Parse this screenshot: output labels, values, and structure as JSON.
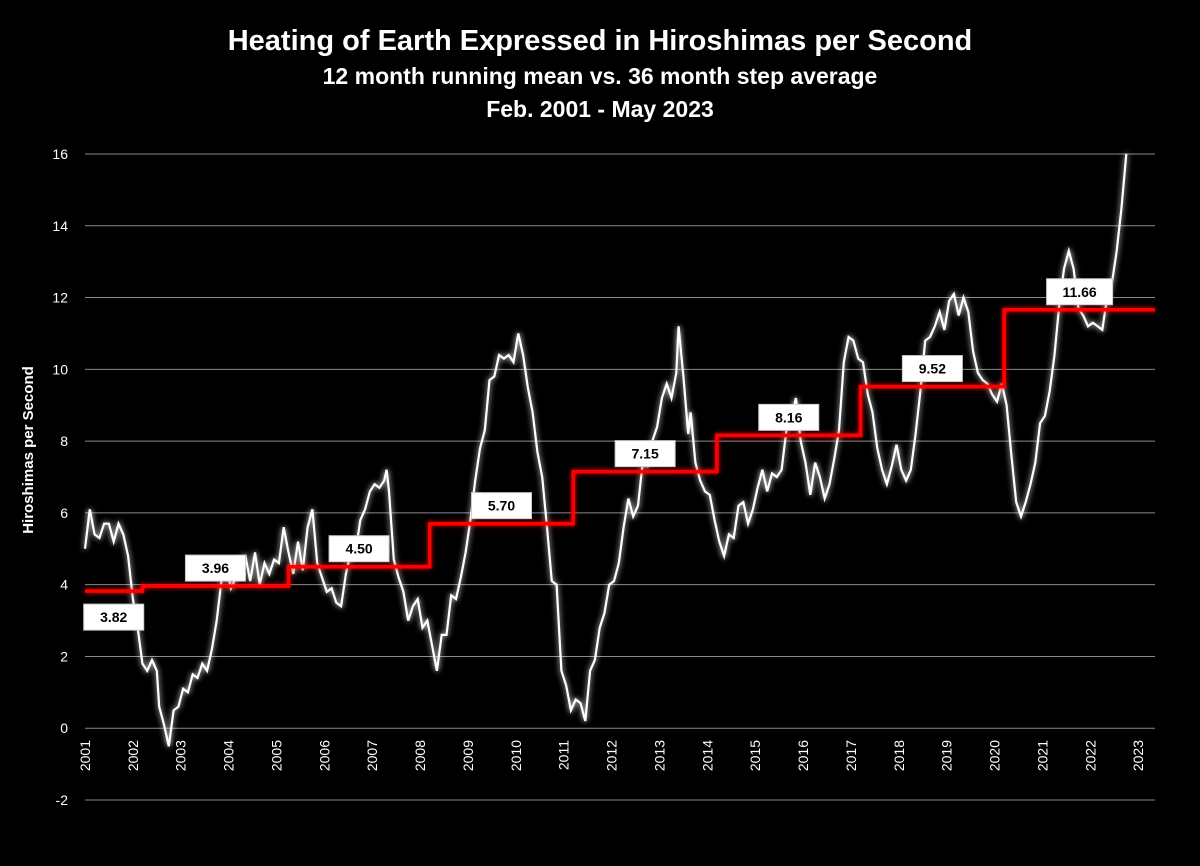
{
  "chart_data": {
    "type": "line",
    "title": "Heating of Earth Expressed in Hiroshimas per Second",
    "subtitle": "12 month running mean vs. 36 month step average",
    "date_range": "Feb. 2001 - May 2023",
    "xlabel": "",
    "ylabel": "Hiroshimas per Second",
    "ylim": [
      -2,
      16
    ],
    "yticks": [
      "-2",
      "0",
      "2",
      "4",
      "6",
      "8",
      "10",
      "12",
      "14",
      "16"
    ],
    "xlim": [
      2001.0,
      2023.35
    ],
    "xticks": [
      "2001",
      "2002",
      "2003",
      "2004",
      "2005",
      "2006",
      "2007",
      "2008",
      "2009",
      "2010",
      "2011",
      "2012",
      "2013",
      "2014",
      "2015",
      "2016",
      "2017",
      "2018",
      "2019",
      "2020",
      "2021",
      "2022",
      "2023"
    ],
    "grid": true,
    "series": [
      {
        "name": "12 month running mean",
        "color": "#ffffff",
        "points": [
          [
            2001.0,
            5.0
          ],
          [
            2001.1,
            6.1
          ],
          [
            2001.2,
            5.4
          ],
          [
            2001.3,
            5.3
          ],
          [
            2001.4,
            5.7
          ],
          [
            2001.5,
            5.7
          ],
          [
            2001.6,
            5.2
          ],
          [
            2001.7,
            5.7
          ],
          [
            2001.8,
            5.4
          ],
          [
            2001.9,
            4.8
          ],
          [
            2002.0,
            3.6
          ],
          [
            2002.1,
            2.8
          ],
          [
            2002.2,
            1.8
          ],
          [
            2002.3,
            1.6
          ],
          [
            2002.4,
            1.9
          ],
          [
            2002.5,
            1.6
          ],
          [
            2002.55,
            0.6
          ],
          [
            2002.65,
            0.1
          ],
          [
            2002.75,
            -0.5
          ],
          [
            2002.85,
            0.5
          ],
          [
            2002.95,
            0.6
          ],
          [
            2003.05,
            1.1
          ],
          [
            2003.15,
            1.0
          ],
          [
            2003.25,
            1.5
          ],
          [
            2003.35,
            1.4
          ],
          [
            2003.45,
            1.8
          ],
          [
            2003.55,
            1.6
          ],
          [
            2003.65,
            2.2
          ],
          [
            2003.75,
            3.0
          ],
          [
            2003.85,
            4.1
          ],
          [
            2003.95,
            4.5
          ],
          [
            2004.05,
            3.9
          ],
          [
            2004.15,
            4.2
          ],
          [
            2004.25,
            4.7
          ],
          [
            2004.35,
            4.8
          ],
          [
            2004.45,
            4.1
          ],
          [
            2004.55,
            4.9
          ],
          [
            2004.65,
            4.0
          ],
          [
            2004.75,
            4.6
          ],
          [
            2004.85,
            4.3
          ],
          [
            2004.95,
            4.7
          ],
          [
            2005.05,
            4.6
          ],
          [
            2005.15,
            5.6
          ],
          [
            2005.25,
            4.9
          ],
          [
            2005.35,
            4.3
          ],
          [
            2005.45,
            5.2
          ],
          [
            2005.55,
            4.4
          ],
          [
            2005.65,
            5.6
          ],
          [
            2005.75,
            6.1
          ],
          [
            2005.85,
            4.6
          ],
          [
            2005.95,
            4.2
          ],
          [
            2006.05,
            3.8
          ],
          [
            2006.15,
            3.9
          ],
          [
            2006.25,
            3.5
          ],
          [
            2006.35,
            3.4
          ],
          [
            2006.45,
            4.3
          ],
          [
            2006.55,
            4.9
          ],
          [
            2006.65,
            4.9
          ],
          [
            2006.75,
            5.8
          ],
          [
            2006.85,
            6.1
          ],
          [
            2006.95,
            6.6
          ],
          [
            2007.05,
            6.8
          ],
          [
            2007.15,
            6.7
          ],
          [
            2007.25,
            6.9
          ],
          [
            2007.3,
            7.2
          ],
          [
            2007.35,
            6.6
          ],
          [
            2007.45,
            4.7
          ],
          [
            2007.55,
            4.2
          ],
          [
            2007.65,
            3.8
          ],
          [
            2007.75,
            3.0
          ],
          [
            2007.85,
            3.4
          ],
          [
            2007.95,
            3.6
          ],
          [
            2008.05,
            2.8
          ],
          [
            2008.15,
            3.0
          ],
          [
            2008.25,
            2.3
          ],
          [
            2008.35,
            1.6
          ],
          [
            2008.45,
            2.6
          ],
          [
            2008.55,
            2.6
          ],
          [
            2008.65,
            3.7
          ],
          [
            2008.75,
            3.6
          ],
          [
            2008.85,
            4.2
          ],
          [
            2008.95,
            4.9
          ],
          [
            2009.05,
            5.8
          ],
          [
            2009.15,
            6.9
          ],
          [
            2009.25,
            7.8
          ],
          [
            2009.35,
            8.3
          ],
          [
            2009.45,
            9.7
          ],
          [
            2009.55,
            9.8
          ],
          [
            2009.65,
            10.4
          ],
          [
            2009.75,
            10.3
          ],
          [
            2009.85,
            10.4
          ],
          [
            2009.95,
            10.2
          ],
          [
            2010.05,
            11.0
          ],
          [
            2010.15,
            10.4
          ],
          [
            2010.25,
            9.5
          ],
          [
            2010.35,
            8.8
          ],
          [
            2010.45,
            7.7
          ],
          [
            2010.55,
            7.0
          ],
          [
            2010.65,
            5.6
          ],
          [
            2010.75,
            4.1
          ],
          [
            2010.85,
            4.0
          ],
          [
            2010.95,
            1.6
          ],
          [
            2011.05,
            1.2
          ],
          [
            2011.15,
            0.5
          ],
          [
            2011.25,
            0.8
          ],
          [
            2011.35,
            0.7
          ],
          [
            2011.45,
            0.2
          ],
          [
            2011.55,
            1.6
          ],
          [
            2011.65,
            1.9
          ],
          [
            2011.75,
            2.8
          ],
          [
            2011.85,
            3.2
          ],
          [
            2011.95,
            4.0
          ],
          [
            2012.05,
            4.1
          ],
          [
            2012.15,
            4.6
          ],
          [
            2012.25,
            5.6
          ],
          [
            2012.35,
            6.4
          ],
          [
            2012.45,
            5.9
          ],
          [
            2012.55,
            6.2
          ],
          [
            2012.65,
            7.4
          ],
          [
            2012.75,
            7.3
          ],
          [
            2012.85,
            8.0
          ],
          [
            2012.95,
            8.4
          ],
          [
            2013.05,
            9.2
          ],
          [
            2013.15,
            9.6
          ],
          [
            2013.25,
            9.2
          ],
          [
            2013.35,
            9.9
          ],
          [
            2013.4,
            11.2
          ],
          [
            2013.5,
            9.8
          ],
          [
            2013.6,
            8.2
          ],
          [
            2013.65,
            8.8
          ],
          [
            2013.75,
            7.4
          ],
          [
            2013.85,
            6.9
          ],
          [
            2013.95,
            6.6
          ],
          [
            2014.05,
            6.5
          ],
          [
            2014.15,
            5.8
          ],
          [
            2014.25,
            5.2
          ],
          [
            2014.35,
            4.8
          ],
          [
            2014.45,
            5.4
          ],
          [
            2014.55,
            5.3
          ],
          [
            2014.65,
            6.2
          ],
          [
            2014.75,
            6.3
          ],
          [
            2014.85,
            5.7
          ],
          [
            2014.95,
            6.1
          ],
          [
            2015.05,
            6.7
          ],
          [
            2015.15,
            7.2
          ],
          [
            2015.25,
            6.6
          ],
          [
            2015.35,
            7.1
          ],
          [
            2015.45,
            7.0
          ],
          [
            2015.55,
            7.2
          ],
          [
            2015.65,
            8.3
          ],
          [
            2015.75,
            8.6
          ],
          [
            2015.85,
            9.2
          ],
          [
            2015.95,
            8.0
          ],
          [
            2016.05,
            7.4
          ],
          [
            2016.15,
            6.5
          ],
          [
            2016.25,
            7.4
          ],
          [
            2016.35,
            7.0
          ],
          [
            2016.45,
            6.4
          ],
          [
            2016.55,
            6.8
          ],
          [
            2016.65,
            7.5
          ],
          [
            2016.75,
            8.3
          ],
          [
            2016.85,
            10.2
          ],
          [
            2016.95,
            10.9
          ],
          [
            2017.05,
            10.8
          ],
          [
            2017.15,
            10.3
          ],
          [
            2017.25,
            10.2
          ],
          [
            2017.35,
            9.3
          ],
          [
            2017.45,
            8.8
          ],
          [
            2017.55,
            7.8
          ],
          [
            2017.65,
            7.2
          ],
          [
            2017.75,
            6.8
          ],
          [
            2017.85,
            7.3
          ],
          [
            2017.95,
            7.9
          ],
          [
            2018.05,
            7.2
          ],
          [
            2018.15,
            6.9
          ],
          [
            2018.25,
            7.2
          ],
          [
            2018.35,
            8.2
          ],
          [
            2018.45,
            9.4
          ],
          [
            2018.55,
            10.8
          ],
          [
            2018.65,
            10.9
          ],
          [
            2018.75,
            11.2
          ],
          [
            2018.85,
            11.6
          ],
          [
            2018.95,
            11.1
          ],
          [
            2019.05,
            11.9
          ],
          [
            2019.15,
            12.1
          ],
          [
            2019.25,
            11.5
          ],
          [
            2019.35,
            12.0
          ],
          [
            2019.45,
            11.6
          ],
          [
            2019.55,
            10.5
          ],
          [
            2019.65,
            9.9
          ],
          [
            2019.75,
            9.7
          ],
          [
            2019.85,
            9.6
          ],
          [
            2019.95,
            9.3
          ],
          [
            2020.05,
            9.1
          ],
          [
            2020.15,
            9.6
          ],
          [
            2020.25,
            9.0
          ],
          [
            2020.35,
            7.6
          ],
          [
            2020.45,
            6.3
          ],
          [
            2020.55,
            5.9
          ],
          [
            2020.65,
            6.3
          ],
          [
            2020.75,
            6.8
          ],
          [
            2020.85,
            7.4
          ],
          [
            2020.95,
            8.5
          ],
          [
            2021.05,
            8.7
          ],
          [
            2021.15,
            9.4
          ],
          [
            2021.25,
            10.4
          ],
          [
            2021.35,
            11.8
          ],
          [
            2021.45,
            12.8
          ],
          [
            2021.55,
            13.3
          ],
          [
            2021.65,
            12.8
          ],
          [
            2021.75,
            11.7
          ],
          [
            2021.85,
            11.5
          ],
          [
            2021.95,
            11.2
          ],
          [
            2022.05,
            11.3
          ],
          [
            2022.15,
            11.2
          ],
          [
            2022.25,
            11.1
          ],
          [
            2022.35,
            12.0
          ],
          [
            2022.45,
            12.4
          ],
          [
            2022.55,
            13.3
          ],
          [
            2022.65,
            14.5
          ],
          [
            2022.75,
            16.0
          ]
        ]
      },
      {
        "name": "36 month step average",
        "color": "#ff0000",
        "steps": [
          {
            "from": 2001.0,
            "to": 2002.2,
            "value": 3.82,
            "label": "3.82"
          },
          {
            "from": 2002.2,
            "to": 2005.25,
            "value": 3.96,
            "label": "3.96"
          },
          {
            "from": 2005.25,
            "to": 2008.2,
            "value": 4.5,
            "label": "4.50"
          },
          {
            "from": 2008.2,
            "to": 2011.2,
            "value": 5.7,
            "label": "5.70"
          },
          {
            "from": 2011.2,
            "to": 2014.2,
            "value": 7.15,
            "label": "7.15"
          },
          {
            "from": 2014.2,
            "to": 2017.2,
            "value": 8.16,
            "label": "8.16"
          },
          {
            "from": 2017.2,
            "to": 2020.2,
            "value": 9.52,
            "label": "9.52"
          },
          {
            "from": 2020.2,
            "to": 2023.35,
            "value": 11.66,
            "label": "11.66"
          }
        ]
      }
    ]
  }
}
